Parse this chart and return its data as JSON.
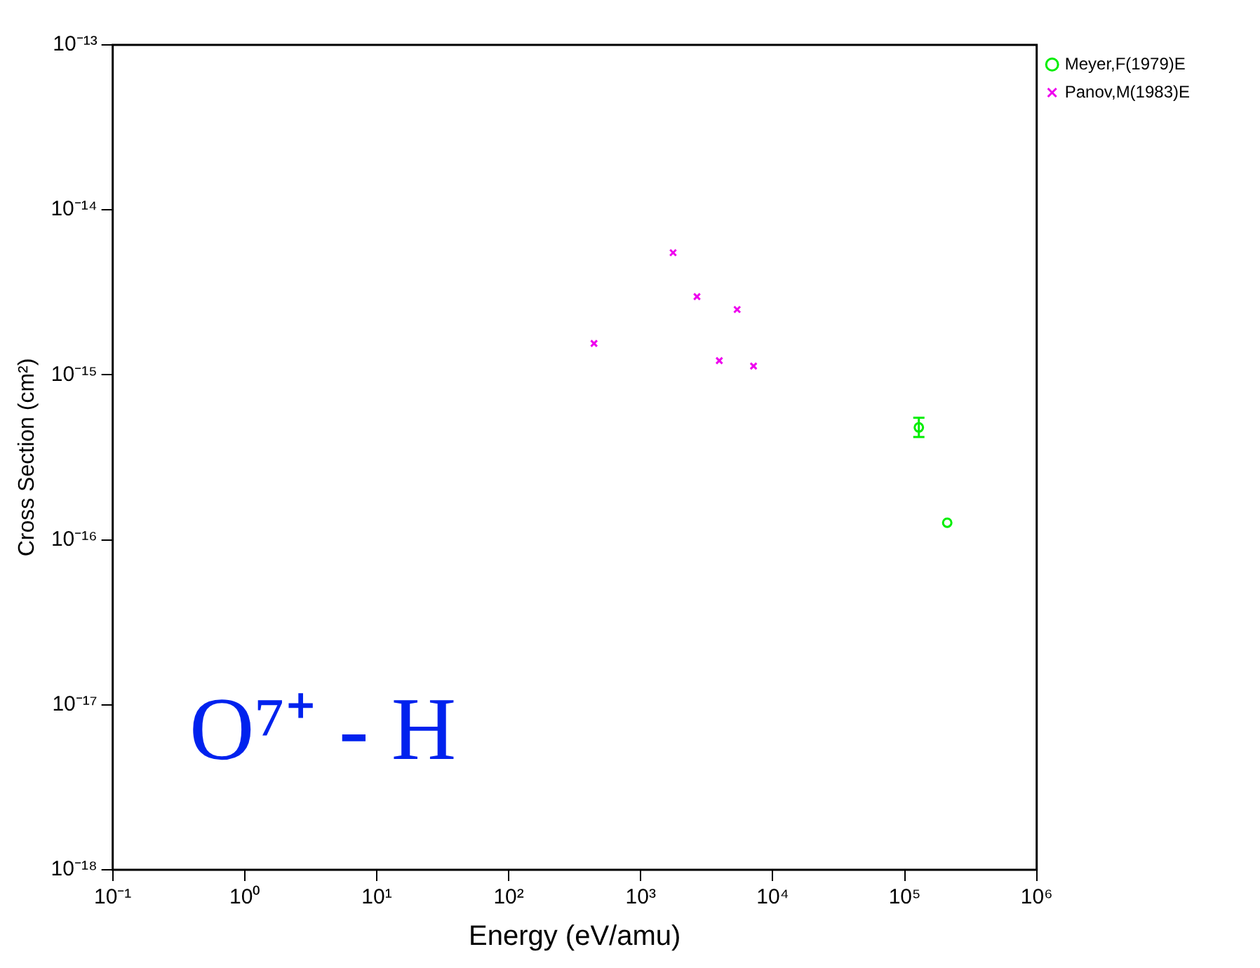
{
  "chart_data": {
    "type": "scatter",
    "xlabel": "Energy (eV/amu)",
    "ylabel": "Cross Section (cm²)",
    "log": "xy",
    "legend": "top right",
    "xlim": [
      0.1,
      1000000
    ],
    "ylim": [
      1e-18,
      1e-13
    ],
    "xticks": [
      {
        "value": 0.1,
        "label": "10⁻¹"
      },
      {
        "value": 1,
        "label": "10⁰"
      },
      {
        "value": 10,
        "label": "10¹"
      },
      {
        "value": 100,
        "label": "10²"
      },
      {
        "value": 1000,
        "label": "10³"
      },
      {
        "value": 10000,
        "label": "10⁴"
      },
      {
        "value": 100000,
        "label": "10⁵"
      },
      {
        "value": 1000000,
        "label": "10⁶"
      }
    ],
    "yticks": [
      {
        "value": 1e-18,
        "label": "10⁻¹⁸"
      },
      {
        "value": 1e-17,
        "label": "10⁻¹⁷"
      },
      {
        "value": 1e-16,
        "label": "10⁻¹⁶"
      },
      {
        "value": 1e-15,
        "label": "10⁻¹⁵"
      },
      {
        "value": 1e-14,
        "label": "10⁻¹⁴"
      },
      {
        "value": 1e-13,
        "label": "10⁻¹³"
      }
    ],
    "series": [
      {
        "name": "Meyer,F(1979)E",
        "color": "#00ee00",
        "marker": "circle",
        "x": [
          128000,
          210000
        ],
        "values": [
          4.8e-16,
          1.27e-16
        ],
        "errors": [
          [
            4.2e-16,
            5.5e-16
          ],
          null
        ]
      },
      {
        "name": "Panov,M(1983)E",
        "color": "#ee00ee",
        "marker": "cross",
        "x": [
          443,
          1760,
          2670,
          3940,
          5380,
          7160
        ],
        "values": [
          1.55e-15,
          5.5e-15,
          2.98e-15,
          1.22e-15,
          2.49e-15,
          1.13e-15
        ]
      }
    ],
    "annotations": [
      "O⁷⁺ - H"
    ]
  }
}
